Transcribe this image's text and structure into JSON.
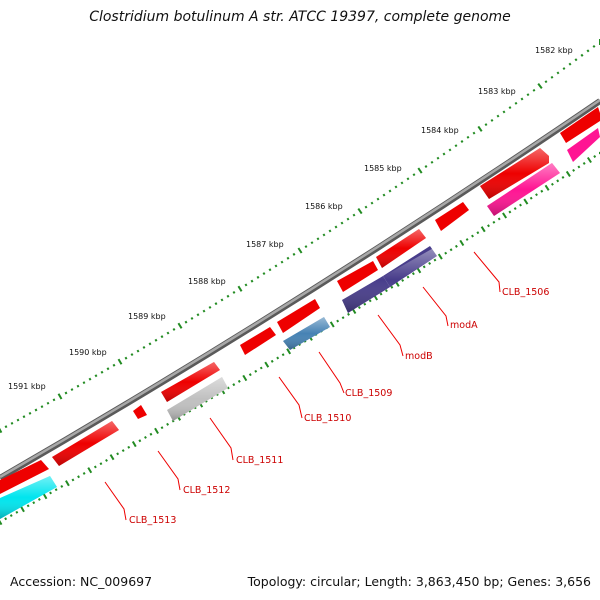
{
  "title": "Clostridium botulinum A str. ATCC 19397, complete genome",
  "footer": {
    "accession": "Accession: NC_009697",
    "summary": "Topology: circular; Length: 3,863,450 bp; Genes: 3,656"
  },
  "ruler": {
    "labels": [
      "1582 kbp",
      "1583 kbp",
      "1584 kbp",
      "1585 kbp",
      "1586 kbp",
      "1587 kbp",
      "1588 kbp",
      "1589 kbp",
      "1590 kbp",
      "1591 kbp"
    ]
  },
  "gene_labels": [
    "CLB_1506",
    "modA",
    "modB",
    "CLB_1509",
    "CLB_1510",
    "CLB_1511",
    "CLB_1512",
    "CLB_1513"
  ],
  "colors": {
    "backbone": "#8c8c8c",
    "cds": "#ee0000",
    "ruler": "#228b22",
    "label": "#cc0000",
    "features": [
      "#ff1493",
      "#483d8b",
      "#4682b4",
      "#c0c0c0",
      "#00e5ee"
    ]
  }
}
